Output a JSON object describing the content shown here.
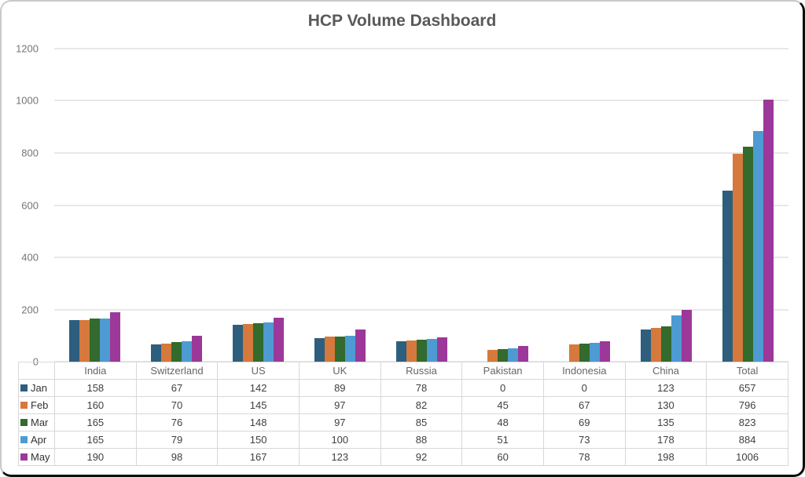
{
  "card": {
    "title": "HCP Volume Dashboard"
  },
  "chart_data": {
    "type": "bar",
    "title": "HCP Volume Dashboard",
    "categories": [
      "India",
      "Switzerland",
      "US",
      "UK",
      "Russia",
      "Pakistan",
      "Indonesia",
      "China",
      "Total"
    ],
    "series": [
      {
        "name": "Jan",
        "color": "#2E5E7E",
        "values": [
          158,
          67,
          142,
          89,
          78,
          0,
          0,
          123,
          657
        ]
      },
      {
        "name": "Feb",
        "color": "#D5793C",
        "values": [
          160,
          70,
          145,
          97,
          82,
          45,
          67,
          130,
          796
        ]
      },
      {
        "name": "Mar",
        "color": "#336A2D",
        "values": [
          165,
          76,
          148,
          97,
          85,
          48,
          69,
          135,
          823
        ]
      },
      {
        "name": "Apr",
        "color": "#4D9BD2",
        "values": [
          165,
          79,
          150,
          100,
          88,
          51,
          73,
          178,
          884
        ]
      },
      {
        "name": "May",
        "color": "#9C3899",
        "values": [
          190,
          98,
          167,
          123,
          92,
          60,
          78,
          198,
          1006
        ]
      }
    ],
    "xlabel": "",
    "ylabel": "",
    "ylim": [
      0,
      1200
    ],
    "yticks": [
      0,
      200,
      400,
      600,
      800,
      1000,
      1200
    ],
    "grid": true,
    "legend_position": "table-left-column"
  },
  "colors": {
    "gridline": "#e8e8e8",
    "axis_label_text": "#757575",
    "title_text": "#595959",
    "table_border": "#d8d8d8",
    "header_text": "#666666",
    "cell_text": "#404040",
    "card_border_dark": "#0b0b0b",
    "card_border_light": "#c9c9c9",
    "background": "#ffffff"
  }
}
